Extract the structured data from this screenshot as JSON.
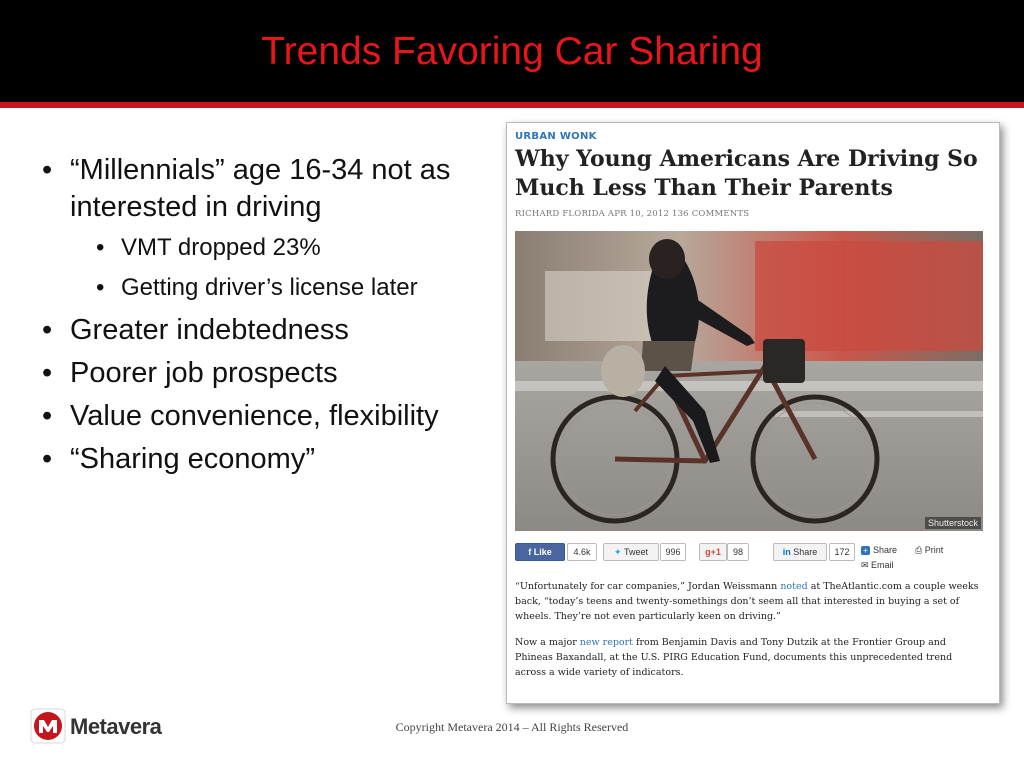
{
  "slide": {
    "title": "Trends Favoring Car Sharing",
    "bullets": [
      {
        "text": "“Millennials” age 16-34 not as interested in driving",
        "sub": [
          "VMT dropped 23%",
          "Getting driver’s license later"
        ]
      },
      {
        "text": "Greater indebtedness",
        "sub": []
      },
      {
        "text": "Poorer job prospects",
        "sub": []
      },
      {
        "text": "Value convenience, flexibility",
        "sub": []
      },
      {
        "text": "“Sharing economy”",
        "sub": []
      }
    ],
    "bullet_glyph": "•",
    "accent_color": "#e8161b",
    "header_bg": "#000000"
  },
  "screenshot": {
    "kicker": "URBAN WONK",
    "headline": "Why Young Americans Are Driving So Much Less Than Their Parents",
    "byline": "RICHARD FLORIDA   APR 10, 2012   136 COMMENTS",
    "photo_credit": "Shutterstock",
    "social": {
      "like": "Like",
      "like_count": "4.6k",
      "tweet": "Tweet",
      "tweet_count": "996",
      "gplus": "+1",
      "gplus_count": "98",
      "linkedin": "Share",
      "linkedin_count": "172",
      "share": "Share",
      "print": "Print",
      "email": "Email"
    },
    "para1_a": "“Unfortunately for car companies,” Jordan Weissmann ",
    "para1_link": "noted",
    "para1_b": " at TheAtlantic.com a couple weeks back, “today’s teens and twenty-somethings don’t seem all that interested in buying a set of wheels. They’re not even particularly keen on driving.”",
    "para2_a": "Now a major ",
    "para2_link": "new report",
    "para2_b": " from Benjamin Davis and Tony Dutzik at the Frontier Group and Phineas Baxandall, at the U.S. PIRG Education Fund, documents this unprecedented trend across a wide variety of indicators."
  },
  "footer": {
    "logo_text": "Metavera",
    "logo_icon": "metavera-logo-icon",
    "copyright": "Copyright Metavera 2014 – All Rights Reserved"
  }
}
